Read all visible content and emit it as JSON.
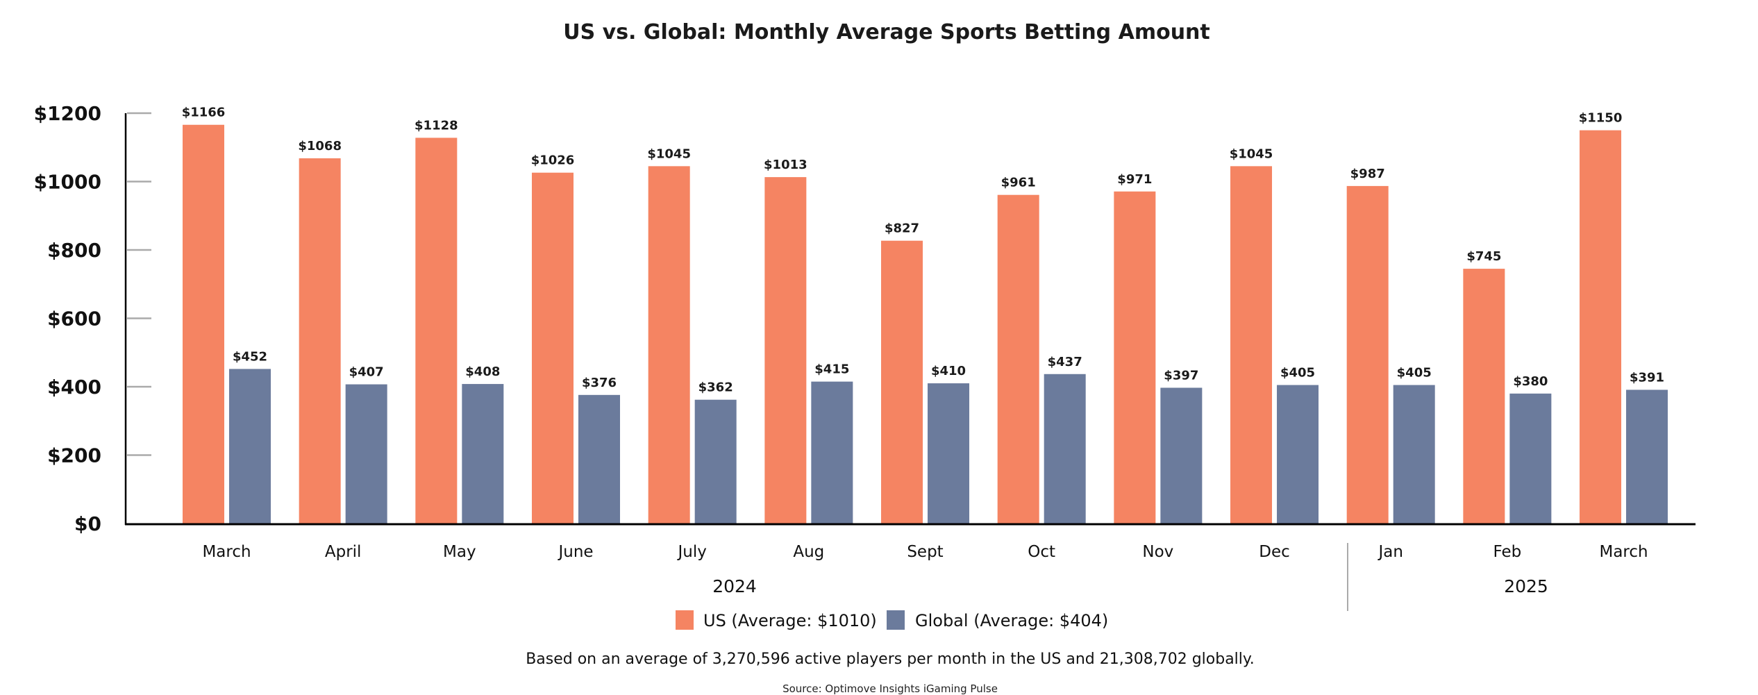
{
  "chart_data": {
    "type": "bar",
    "title": "US vs. Global: Monthly Average Sports Betting Amount",
    "xlabel": "",
    "ylabel": "",
    "ylim": [
      0,
      1200
    ],
    "y_ticks": [
      0,
      200,
      400,
      600,
      800,
      1000,
      1200
    ],
    "y_tick_labels": [
      "$0",
      "$200",
      "$400",
      "$600",
      "$800",
      "$1000",
      "$1200"
    ],
    "grid": false,
    "categories": [
      "March",
      "April",
      "May",
      "June",
      "July",
      "Aug",
      "Sept",
      "Oct",
      "Nov",
      "Dec",
      "Jan",
      "Feb",
      "March"
    ],
    "year_groups": [
      {
        "label": "2024",
        "start_index": 0,
        "end_index": 9
      },
      {
        "label": "2025",
        "start_index": 10,
        "end_index": 12
      }
    ],
    "series": [
      {
        "name": "US",
        "legend_label": "US (Average: $1010)",
        "color": "#f58462",
        "values": [
          1166,
          1068,
          1128,
          1026,
          1045,
          1013,
          827,
          961,
          971,
          1045,
          987,
          745,
          1150
        ],
        "labels": [
          "$1166",
          "$1068",
          "$1128",
          "$1026",
          "$1045",
          "$1013",
          "$827",
          "$961",
          "$971",
          "$1045",
          "$987",
          "$745",
          "$1150"
        ]
      },
      {
        "name": "Global",
        "legend_label": "Global (Average: $404)",
        "color": "#6b7b9c",
        "values": [
          452,
          407,
          408,
          376,
          362,
          415,
          410,
          437,
          397,
          405,
          405,
          380,
          391
        ],
        "labels": [
          "$452",
          "$407",
          "$408",
          "$376",
          "$362",
          "$415",
          "$410",
          "$437",
          "$397",
          "$405",
          "$405",
          "$380",
          "$391"
        ]
      }
    ],
    "legend_position": "bottom-center",
    "footnote": "Based on an average of 3,270,596 active players per month in the US and 21,308,702 globally.",
    "source": "Source: Optimove Insights iGaming Pulse"
  }
}
